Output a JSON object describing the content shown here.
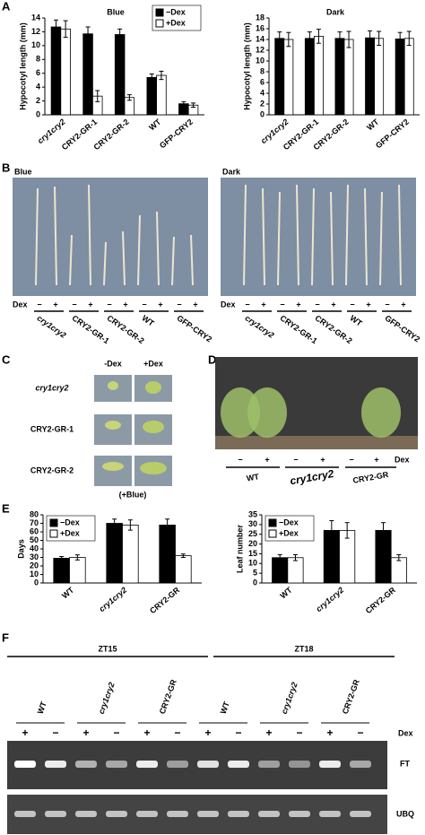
{
  "chart_data": [
    {
      "type": "bar",
      "title": "Blue",
      "y_label": "Hypocotyl length (mm)",
      "categories": [
        "cry1cry2",
        "CRY2-GR-1",
        "CRY2-GR-2",
        "WT",
        "GFP-CRY2"
      ],
      "series": [
        {
          "name": "−Dex",
          "color": "#000000",
          "values": [
            12.7,
            11.7,
            11.6,
            5.4,
            1.6
          ],
          "errors": [
            1.0,
            1.0,
            0.8,
            0.5,
            0.3
          ]
        },
        {
          "name": "+Dex",
          "color": "#ffffff",
          "values": [
            12.4,
            2.7,
            2.5,
            5.7,
            1.4
          ],
          "errors": [
            1.2,
            0.8,
            0.4,
            0.6,
            0.3
          ]
        }
      ],
      "ylim": [
        0,
        14
      ],
      "yticks": [
        0,
        2,
        4,
        6,
        8,
        10,
        12,
        14
      ],
      "legend": "upper right"
    },
    {
      "type": "bar",
      "title": "Dark",
      "y_label": "Hypocotyl length (mm)",
      "categories": [
        "cry1cry2",
        "CRY2-GR-1",
        "CRY2-GR-2",
        "WT",
        "GFP-CRY2"
      ],
      "series": [
        {
          "color": "#000000",
          "values": [
            14.2,
            14.2,
            14.2,
            14.3,
            14.1
          ],
          "errors": [
            1.2,
            1.2,
            1.2,
            1.3,
            1.2
          ]
        },
        {
          "color": "#ffffff",
          "values": [
            14.0,
            14.6,
            14.0,
            14.2,
            14.2
          ],
          "errors": [
            1.3,
            1.3,
            1.5,
            1.3,
            1.3
          ]
        }
      ],
      "ylim": [
        0,
        18
      ],
      "yticks": [
        0,
        2,
        4,
        6,
        8,
        10,
        12,
        14,
        16,
        18
      ]
    },
    {
      "type": "bar",
      "y_label": "Days",
      "categories": [
        "WT",
        "cry1cry2",
        "CRY2-GR"
      ],
      "series": [
        {
          "name": "−Dex",
          "color": "#000000",
          "values": [
            29,
            70,
            68
          ],
          "errors": [
            2,
            5,
            7
          ]
        },
        {
          "name": "+Dex",
          "color": "#ffffff",
          "values": [
            30,
            68,
            32
          ],
          "errors": [
            3,
            6,
            2
          ]
        }
      ],
      "ylim": [
        0,
        80
      ],
      "yticks": [
        0,
        10,
        20,
        30,
        40,
        50,
        60,
        70,
        80
      ],
      "legend": "upper left"
    },
    {
      "type": "bar",
      "y_label": "Leaf number",
      "categories": [
        "WT",
        "cry1cry2",
        "CRY2-GR"
      ],
      "series": [
        {
          "name": "−Dex",
          "color": "#000000",
          "values": [
            13,
            27,
            27
          ],
          "errors": [
            1.5,
            5,
            4
          ]
        },
        {
          "name": "+Dex",
          "color": "#ffffff",
          "values": [
            13,
            27,
            13
          ],
          "errors": [
            1.5,
            4,
            1.5
          ]
        }
      ],
      "ylim": [
        0,
        35
      ],
      "yticks": [
        0,
        5,
        10,
        15,
        20,
        25,
        30,
        35
      ],
      "legend": "upper left"
    }
  ],
  "figure": {
    "panel_labels": [
      "A",
      "B",
      "C",
      "D",
      "E",
      "F"
    ],
    "panel_b": {
      "conditions": [
        "Blue",
        "Dark"
      ],
      "treatment": "Dex",
      "signs": [
        "−",
        "+"
      ],
      "genotypes": [
        "cry1cry2",
        "CRY2-GR-1",
        "CRY2-GR-2",
        "WT",
        "GFP-CRY2"
      ]
    },
    "panel_c": {
      "columns": [
        "-Dex",
        "+Dex"
      ],
      "rows": [
        "cry1cry2",
        "CRY2-GR-1",
        "CRY2-GR-2"
      ],
      "note": "(+Blue)"
    },
    "panel_d": {
      "treatment": "Dex",
      "signs": [
        "−",
        "+"
      ],
      "genotypes": [
        "WT",
        "cry1cry2",
        "CRY2-GR"
      ]
    },
    "panel_f": {
      "timepoints": [
        "ZT15",
        "ZT18"
      ],
      "genotypes": [
        "WT",
        "cry1cry2",
        "CRY2-GR"
      ],
      "treatment": "Dex",
      "signs": [
        "+",
        "−"
      ],
      "bands": [
        "FT",
        "UBQ"
      ]
    }
  }
}
